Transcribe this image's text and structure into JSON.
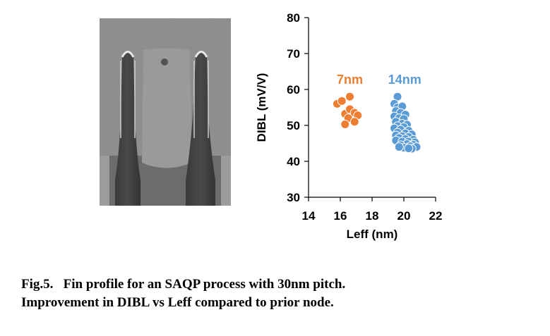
{
  "chart_data": {
    "type": "scatter",
    "xlabel": "Leff (nm)",
    "ylabel": "DIBL (mV/V)",
    "xlim": [
      14,
      22
    ],
    "ylim": [
      30,
      80
    ],
    "xticks": [
      "14",
      "16",
      "18",
      "20",
      "22"
    ],
    "yticks": [
      "30",
      "40",
      "50",
      "60",
      "70",
      "80"
    ],
    "grid": false,
    "series": [
      {
        "name": "7nm",
        "color": "#ed7d31",
        "points": [
          [
            15.8,
            56.0
          ],
          [
            16.1,
            56.8
          ],
          [
            16.6,
            58.0
          ],
          [
            16.3,
            53.2
          ],
          [
            16.6,
            54.5
          ],
          [
            16.9,
            53.5
          ],
          [
            17.1,
            52.8
          ],
          [
            16.5,
            52.0
          ],
          [
            16.9,
            51.0
          ],
          [
            16.3,
            50.3
          ]
        ]
      },
      {
        "name": "14nm",
        "color": "#5b9bd5",
        "points": [
          [
            19.6,
            58.0
          ],
          [
            19.4,
            56.0
          ],
          [
            19.6,
            55.0
          ],
          [
            19.9,
            55.3
          ],
          [
            19.5,
            54.0
          ],
          [
            19.8,
            53.5
          ],
          [
            20.1,
            53.0
          ],
          [
            19.4,
            52.5
          ],
          [
            19.7,
            52.0
          ],
          [
            20.0,
            51.8
          ],
          [
            19.5,
            51.0
          ],
          [
            19.9,
            50.5
          ],
          [
            20.2,
            50.2
          ],
          [
            19.6,
            49.8
          ],
          [
            20.0,
            49.5
          ],
          [
            19.4,
            49.2
          ],
          [
            19.8,
            48.8
          ],
          [
            20.3,
            48.5
          ],
          [
            19.6,
            48.0
          ],
          [
            20.1,
            47.8
          ],
          [
            20.5,
            47.5
          ],
          [
            19.5,
            47.2
          ],
          [
            19.9,
            47.0
          ],
          [
            20.3,
            46.8
          ],
          [
            19.7,
            46.5
          ],
          [
            20.1,
            46.2
          ],
          [
            20.6,
            46.0
          ],
          [
            19.5,
            45.8
          ],
          [
            19.9,
            45.5
          ],
          [
            20.3,
            45.5
          ],
          [
            20.7,
            45.3
          ],
          [
            20.2,
            44.8
          ],
          [
            20.6,
            44.6
          ],
          [
            19.8,
            44.5
          ],
          [
            20.4,
            44.2
          ],
          [
            20.8,
            44.0
          ],
          [
            20.0,
            43.8
          ],
          [
            20.5,
            43.5
          ],
          [
            19.7,
            44.0
          ],
          [
            20.3,
            43.6
          ]
        ]
      }
    ]
  },
  "caption": {
    "line1": "Fig.5.   Fin profile for an SAQP process with 30nm pitch.",
    "line2": "Improvement in DIBL vs Leff compared to prior node."
  }
}
